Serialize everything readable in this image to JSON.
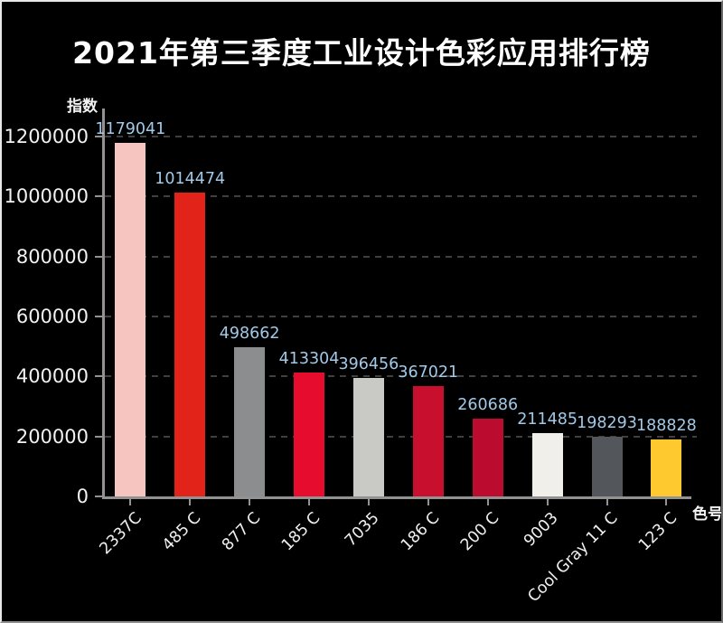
{
  "title": "2021年第三季度工业设计色彩应用排行榜",
  "chart_data": {
    "type": "bar",
    "title": "2021年第三季度工业设计色彩应用排行榜",
    "ylabel": "指数",
    "xlabel": "色号",
    "categories": [
      "2337C",
      "485 C",
      "877 C",
      "185 C",
      "7035",
      "186 C",
      "200 C",
      "9003",
      "Cool Gray 11 C",
      "123 C"
    ],
    "values": [
      1179041,
      1014474,
      498662,
      413304,
      396456,
      367021,
      260686,
      211485,
      198293,
      188828
    ],
    "value_labels": [
      "1179041",
      "1014474",
      "498662",
      "413304",
      "396456",
      "367021",
      "260686",
      "211485",
      "198293",
      "188828"
    ],
    "bar_colors": [
      "#f7c5c0",
      "#e2231a",
      "#8b8d8e",
      "#e50c2e",
      "#c9cac5",
      "#c8102e",
      "#bb0c2f",
      "#f0efe9",
      "#53565a",
      "#fec82f"
    ],
    "y_ticks": [
      0,
      200000,
      400000,
      600000,
      800000,
      1000000,
      1200000
    ],
    "y_tick_labels": [
      "0",
      "200000",
      "400000",
      "600000",
      "800000",
      "1000000",
      "1200000"
    ],
    "ylim": [
      0,
      1200000
    ],
    "grid": "horizontal-dashed",
    "legend": "none",
    "colors": {
      "background": "#000000",
      "axis": "#929292",
      "gridline": "#404040",
      "value_label_text": "#a2c9e8",
      "tick_label_text": "#f2f2f2",
      "title_text": "#ffffff"
    }
  }
}
